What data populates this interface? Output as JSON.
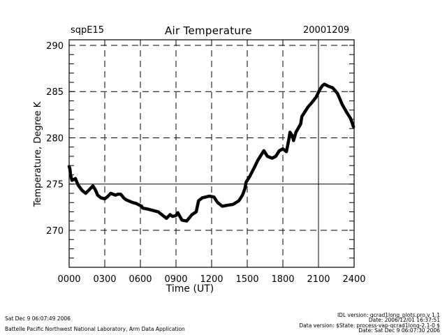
{
  "header": {
    "site": "sqpE15",
    "title": "Air Temperature",
    "date": "20001209"
  },
  "footer": {
    "left": [
      "Sat Dec  9 06:07:49 2006",
      "Battelle Pacific Northwest National Laboratory, Arm Data Application"
    ],
    "right": [
      "IDL version: qcrad1long_plots.pro,v 1.1",
      "Date: 2006/12/01 16:37:51",
      "Data version: $State: process-vap-qcrad1long-2.1-0 $",
      "Date: Sat Dec  9 06:07:30 2006"
    ]
  },
  "colors": {
    "line": "#000000",
    "grid": "#000000",
    "background": "#ffffff"
  },
  "chart_data": {
    "type": "line",
    "title": "Air Temperature",
    "xlabel": "Time (UT)",
    "ylabel": "Temperature, Degree K",
    "xlim": [
      0,
      24
    ],
    "ylim": [
      266,
      290.6
    ],
    "x_ticks": [
      0,
      3,
      6,
      9,
      12,
      15,
      18,
      21,
      24
    ],
    "x_tick_labels": [
      "0000",
      "0300",
      "0600",
      "0900",
      "1200",
      "1500",
      "1800",
      "2100",
      "2400"
    ],
    "y_ticks": [
      270,
      275,
      280,
      285,
      290
    ],
    "y_tick_labels": [
      "270",
      "275",
      "280",
      "285",
      "290"
    ],
    "y_minor_step": 1,
    "grid": true,
    "solid_gridlines": {
      "x": [
        21
      ],
      "y": [
        275
      ]
    },
    "series": [
      {
        "name": "Air Temperature",
        "x": [
          0.0,
          0.06,
          0.12,
          0.24,
          0.4,
          0.53,
          0.75,
          1.1,
          1.4,
          1.7,
          2.0,
          2.2,
          2.4,
          2.7,
          3.0,
          3.2,
          3.5,
          3.9,
          4.1,
          4.35,
          4.6,
          4.8,
          5.35,
          5.65,
          6.1,
          6.2,
          6.6,
          7.2,
          7.5,
          7.8,
          8.2,
          8.5,
          8.7,
          9.0,
          9.15,
          9.5,
          9.9,
          10.35,
          10.7,
          10.9,
          11.2,
          11.5,
          11.8,
          12.2,
          12.5,
          12.9,
          13.3,
          13.8,
          14.3,
          14.6,
          14.8,
          14.9,
          15.2,
          15.6,
          15.9,
          16.2,
          16.4,
          16.7,
          17.1,
          17.4,
          17.7,
          18.0,
          18.3,
          18.5,
          18.6,
          18.8,
          18.9,
          19.1,
          19.5,
          19.6,
          20.1,
          20.5,
          20.8,
          21.1,
          21.3,
          21.5,
          21.8,
          22.2,
          22.6,
          23.0,
          23.4,
          23.7,
          23.95
        ],
        "y": [
          276.9,
          276.7,
          276.0,
          275.4,
          275.5,
          275.6,
          274.9,
          274.3,
          274.0,
          274.4,
          274.8,
          274.4,
          273.8,
          273.5,
          273.4,
          273.6,
          274.0,
          273.8,
          273.9,
          273.9,
          273.5,
          273.3,
          273.0,
          272.9,
          272.6,
          272.4,
          272.3,
          272.1,
          272.0,
          271.7,
          271.3,
          271.7,
          271.5,
          271.6,
          271.9,
          271.1,
          271.0,
          271.7,
          272.0,
          273.2,
          273.5,
          273.6,
          273.7,
          273.6,
          273.0,
          272.6,
          272.7,
          272.8,
          273.2,
          273.8,
          274.5,
          275.2,
          275.8,
          276.8,
          277.6,
          278.2,
          278.6,
          278.0,
          277.8,
          278.0,
          278.6,
          278.8,
          278.5,
          279.8,
          280.6,
          280.2,
          279.7,
          280.6,
          281.5,
          282.3,
          283.3,
          283.9,
          284.4,
          285.2,
          285.6,
          285.8,
          285.6,
          285.4,
          284.8,
          283.6,
          282.7,
          282.1,
          281.2
        ]
      }
    ]
  }
}
